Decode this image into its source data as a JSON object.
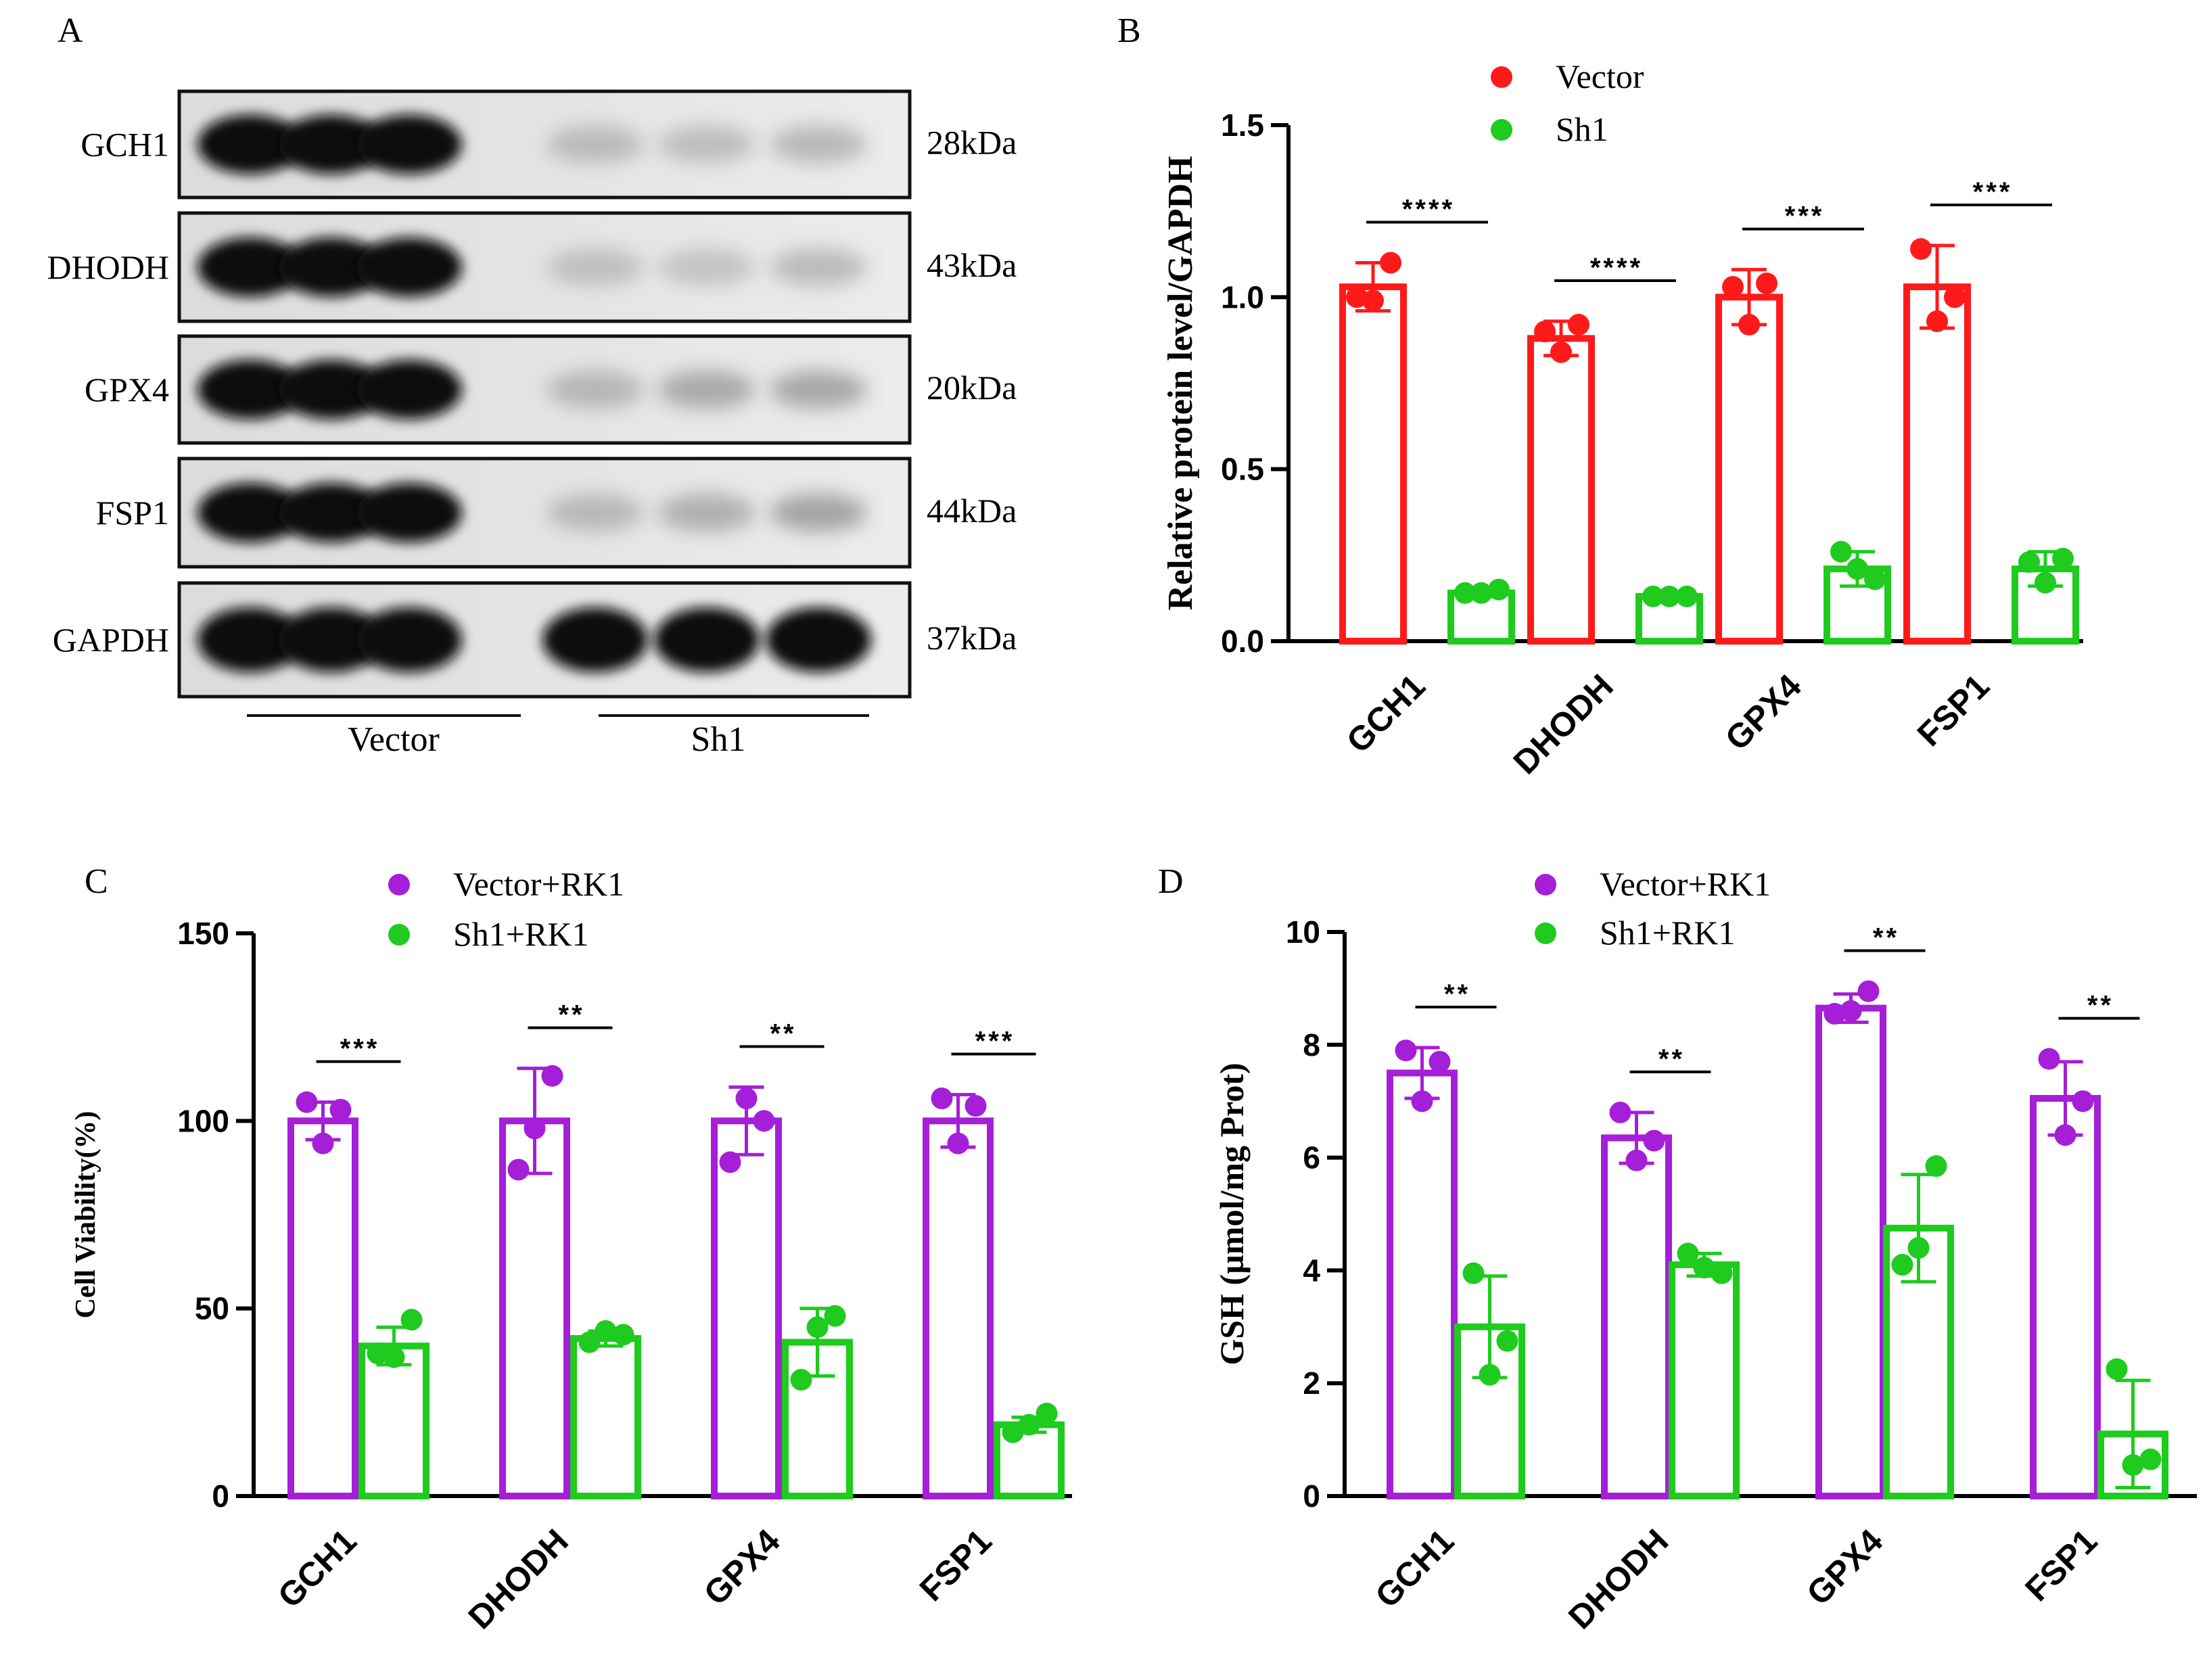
{
  "panels": {
    "a": "A",
    "b": "B",
    "c": "C",
    "d": "D"
  },
  "blot": {
    "rows": [
      {
        "protein": "GCH1",
        "size": "28kDa"
      },
      {
        "protein": "DHODH",
        "size": "43kDa"
      },
      {
        "protein": "GPX4",
        "size": "20kDa"
      },
      {
        "protein": "FSP1",
        "size": "44kDa"
      },
      {
        "protein": "GAPDH",
        "size": "37kDa"
      }
    ],
    "groups": [
      "Vector",
      "Sh1"
    ]
  },
  "chart_data": [
    {
      "panel": "B",
      "type": "bar",
      "ylabel": "Relative  protein level/GAPDH",
      "ylim": [
        0,
        1.5
      ],
      "yticks": [
        "0.0",
        "0.5",
        "1.0",
        "1.5"
      ],
      "categories": [
        "GCH1",
        "DHODH",
        "GPX4",
        "FSP1"
      ],
      "series": [
        {
          "name": "Vector",
          "color": "#ff1a1a",
          "values": [
            1.03,
            0.88,
            1.0,
            1.03
          ],
          "sd": [
            0.07,
            0.05,
            0.08,
            0.12
          ],
          "points": [
            [
              1.0,
              1.1,
              0.99
            ],
            [
              0.9,
              0.92,
              0.84
            ],
            [
              1.03,
              1.04,
              0.92
            ],
            [
              1.14,
              1.0,
              0.93
            ]
          ]
        },
        {
          "name": "Sh1",
          "color": "#1ecb1e",
          "values": [
            0.14,
            0.13,
            0.21,
            0.21
          ],
          "sd": [
            0.01,
            0.01,
            0.05,
            0.05
          ],
          "points": [
            [
              0.14,
              0.15,
              0.14
            ],
            [
              0.13,
              0.13,
              0.13
            ],
            [
              0.26,
              0.18,
              0.21
            ],
            [
              0.23,
              0.24,
              0.17
            ]
          ]
        }
      ],
      "significance": [
        "****",
        "****",
        "***",
        "***"
      ]
    },
    {
      "panel": "C",
      "type": "bar",
      "ylabel": "Cell Viability(%)",
      "ylim": [
        0,
        150
      ],
      "yticks": [
        "0",
        "50",
        "100",
        "150"
      ],
      "categories": [
        "GCH1",
        "DHODH",
        "GPX4",
        "FSP1"
      ],
      "series": [
        {
          "name": "Vector+RK1",
          "color": "#a51ed8",
          "values": [
            100,
            100,
            100,
            100
          ],
          "sd": [
            5,
            14,
            9,
            7
          ],
          "points": [
            [
              105,
              103,
              94
            ],
            [
              87,
              112,
              98
            ],
            [
              89,
              100,
              106
            ],
            [
              106,
              104,
              94
            ]
          ]
        },
        {
          "name": "Sh1+RK1",
          "color": "#1ecb1e",
          "values": [
            40,
            42,
            41,
            19
          ],
          "sd": [
            5,
            2,
            9,
            2
          ],
          "points": [
            [
              38,
              47,
              37
            ],
            [
              41,
              43,
              44
            ],
            [
              31,
              48,
              45
            ],
            [
              17,
              22,
              19
            ]
          ]
        }
      ],
      "significance": [
        "***",
        "**",
        "**",
        "***"
      ]
    },
    {
      "panel": "D",
      "type": "bar",
      "ylabel": "GSH (µmol/mg Prot)",
      "ylim": [
        0,
        10
      ],
      "yticks": [
        "0",
        "2",
        "4",
        "6",
        "8",
        "10"
      ],
      "categories": [
        "GCH1",
        "DHODH",
        "GPX4",
        "FSP1"
      ],
      "series": [
        {
          "name": "Vector+RK1",
          "color": "#a51ed8",
          "values": [
            7.5,
            6.35,
            8.65,
            7.05
          ],
          "sd": [
            0.45,
            0.45,
            0.25,
            0.65
          ],
          "points": [
            [
              7.9,
              7.7,
              7.0
            ],
            [
              6.8,
              6.3,
              5.95
            ],
            [
              8.55,
              8.95,
              8.6
            ],
            [
              7.75,
              7.0,
              6.4
            ]
          ]
        },
        {
          "name": "Sh1+RK1",
          "color": "#1ecb1e",
          "values": [
            3.0,
            4.1,
            4.75,
            1.1
          ],
          "sd": [
            0.9,
            0.2,
            0.95,
            0.95
          ],
          "points": [
            [
              3.95,
              2.75,
              2.15
            ],
            [
              4.3,
              3.95,
              4.05
            ],
            [
              4.1,
              5.85,
              4.4
            ],
            [
              2.25,
              0.65,
              0.55
            ]
          ]
        }
      ],
      "significance": [
        "**",
        "**",
        "**",
        "**"
      ]
    }
  ]
}
